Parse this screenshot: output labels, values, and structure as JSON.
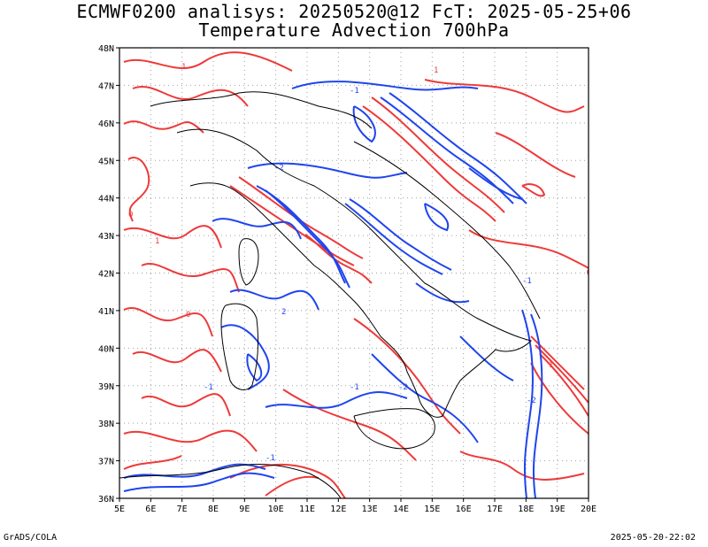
{
  "title": {
    "line1": "ECMWF0200 analisys: 20250520@12 FcT: 2025-05-25+06",
    "line2": "Temperature Advection 700hPa"
  },
  "footer": {
    "left": "GrADS/COLA",
    "right": "2025-05-20-22:02"
  },
  "axes": {
    "lon_labels": [
      "5E",
      "6E",
      "7E",
      "8E",
      "9E",
      "10E",
      "11E",
      "12E",
      "13E",
      "14E",
      "15E",
      "16E",
      "17E",
      "18E",
      "19E",
      "20E"
    ],
    "lat_labels": [
      "36N",
      "37N",
      "38N",
      "39N",
      "40N",
      "41N",
      "42N",
      "43N",
      "44N",
      "45N",
      "46N",
      "47N",
      "48N"
    ],
    "lon_range": [
      5,
      20
    ],
    "lat_range": [
      36,
      48
    ]
  },
  "contour_labels": {
    "positive": "1",
    "zero": "0",
    "negative": "-1",
    "negative2": "-2",
    "positive2": "2"
  },
  "colors": {
    "warm": "#ee3a3a",
    "cold": "#1f45ee",
    "coast": "#000000",
    "grid": "#a0a0a0"
  }
}
